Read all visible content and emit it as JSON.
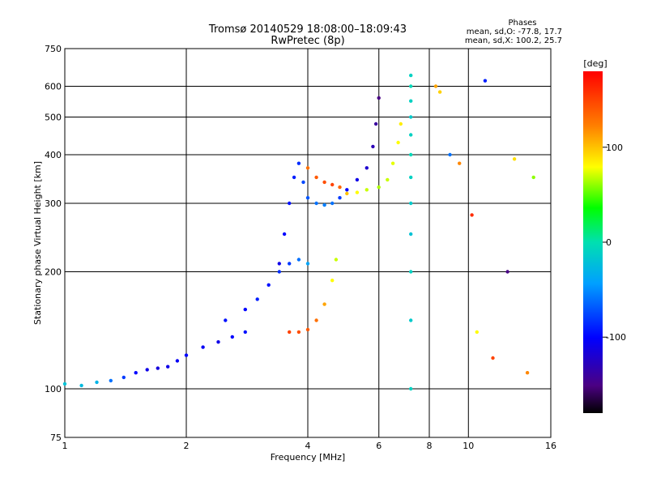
{
  "chart_data": {
    "type": "scatter",
    "title": "Tromsø 20140529 18:08:00–18:09:43",
    "subtitle": "RwPretec (8p)",
    "xlabel": "Frequency [MHz]",
    "ylabel": "Stationary phase Virtual Height [km]",
    "xscale": "log2",
    "yscale": "log",
    "xlim": [
      1,
      16
    ],
    "ylim": [
      75,
      750
    ],
    "x_ticks": [
      1,
      2,
      4,
      6,
      8,
      10,
      16
    ],
    "x_tick_labels": [
      "1",
      "2",
      "4",
      "6",
      "8",
      "10",
      "16"
    ],
    "y_ticks": [
      75,
      100,
      200,
      300,
      400,
      500,
      600,
      750
    ],
    "y_tick_labels": [
      "75",
      "100",
      "200",
      "300",
      "400",
      "500",
      "600",
      "750"
    ],
    "grid": true,
    "colorbar": {
      "label": "[deg]",
      "range": [
        -180,
        180
      ],
      "ticks": [
        100,
        0,
        -100
      ],
      "tick_labels": [
        "100",
        "0",
        "-100"
      ]
    },
    "legend_text": {
      "title": "Phases",
      "line1": "mean, sd,O: -77.8, 17.7",
      "line2": "mean, sd,X: 100.2, 25.7"
    },
    "series": [
      {
        "trace": "low_E_trace",
        "points": [
          [
            1.0,
            103,
            -20
          ],
          [
            1.1,
            102,
            -25
          ],
          [
            1.2,
            104,
            -30
          ],
          [
            1.3,
            105,
            -60
          ],
          [
            1.4,
            107,
            -80
          ],
          [
            1.5,
            110,
            -100
          ],
          [
            1.6,
            112,
            -110
          ],
          [
            1.7,
            113,
            -115
          ],
          [
            1.8,
            114,
            -110
          ],
          [
            1.9,
            118,
            -105
          ],
          [
            2.0,
            122,
            -100
          ],
          [
            2.2,
            128,
            -105
          ],
          [
            2.4,
            132,
            -110
          ],
          [
            2.6,
            136,
            -100
          ],
          [
            2.8,
            140,
            -95
          ]
        ]
      },
      {
        "trace": "o_mode_F_trace",
        "points": [
          [
            3.4,
            210,
            -110
          ],
          [
            3.5,
            250,
            -100
          ],
          [
            3.6,
            300,
            -95
          ],
          [
            3.7,
            350,
            -90
          ],
          [
            3.8,
            380,
            -85
          ],
          [
            3.9,
            340,
            -75
          ],
          [
            4.0,
            310,
            -70
          ],
          [
            4.2,
            300,
            -60
          ],
          [
            4.4,
            297,
            -55
          ],
          [
            4.6,
            300,
            -60
          ],
          [
            4.8,
            310,
            -80
          ],
          [
            5.0,
            325,
            -100
          ],
          [
            5.3,
            345,
            -110
          ],
          [
            5.6,
            370,
            -120
          ],
          [
            5.8,
            420,
            -130
          ],
          [
            5.9,
            480,
            -140
          ],
          [
            6.0,
            560,
            -150
          ]
        ]
      },
      {
        "trace": "x_mode_F_trace",
        "points": [
          [
            4.0,
            370,
            130
          ],
          [
            4.2,
            350,
            140
          ],
          [
            4.4,
            340,
            145
          ],
          [
            4.6,
            335,
            150
          ],
          [
            4.8,
            330,
            135
          ],
          [
            5.0,
            318,
            100
          ],
          [
            5.3,
            320,
            80
          ],
          [
            5.6,
            325,
            70
          ],
          [
            6.0,
            330,
            65
          ],
          [
            6.3,
            345,
            70
          ],
          [
            6.5,
            380,
            75
          ],
          [
            6.7,
            430,
            80
          ],
          [
            6.8,
            480,
            85
          ]
        ]
      },
      {
        "trace": "lower_o_trace",
        "points": [
          [
            2.5,
            150,
            -95
          ],
          [
            2.8,
            160,
            -100
          ],
          [
            3.0,
            170,
            -90
          ],
          [
            3.2,
            185,
            -95
          ],
          [
            3.4,
            200,
            -85
          ],
          [
            3.6,
            210,
            -80
          ],
          [
            3.8,
            215,
            -60
          ],
          [
            4.0,
            210,
            -40
          ]
        ]
      },
      {
        "trace": "lower_x_trace",
        "points": [
          [
            3.6,
            140,
            150
          ],
          [
            3.8,
            140,
            145
          ],
          [
            4.0,
            142,
            140
          ],
          [
            4.2,
            150,
            130
          ],
          [
            4.4,
            165,
            110
          ],
          [
            4.6,
            190,
            80
          ],
          [
            4.7,
            215,
            70
          ]
        ]
      },
      {
        "trace": "vertical_interference_line",
        "points": [
          [
            7.2,
            100,
            -10
          ],
          [
            7.2,
            150,
            -15
          ],
          [
            7.2,
            200,
            -10
          ],
          [
            7.2,
            250,
            -20
          ],
          [
            7.2,
            300,
            -15
          ],
          [
            7.2,
            350,
            -10
          ],
          [
            7.2,
            400,
            -5
          ],
          [
            7.2,
            450,
            -10
          ],
          [
            7.2,
            500,
            -15
          ],
          [
            7.2,
            550,
            -10
          ],
          [
            7.2,
            600,
            -5
          ],
          [
            7.2,
            640,
            -10
          ]
        ]
      },
      {
        "trace": "scattered_noise",
        "points": [
          [
            8.3,
            600,
            110
          ],
          [
            8.5,
            580,
            95
          ],
          [
            9.0,
            400,
            -60
          ],
          [
            9.5,
            380,
            120
          ],
          [
            10.2,
            280,
            160
          ],
          [
            10.5,
            140,
            80
          ],
          [
            11.0,
            620,
            -90
          ],
          [
            11.5,
            120,
            150
          ],
          [
            12.5,
            200,
            -150
          ],
          [
            13.0,
            390,
            90
          ],
          [
            14.0,
            110,
            120
          ],
          [
            14.5,
            350,
            60
          ]
        ]
      }
    ]
  }
}
